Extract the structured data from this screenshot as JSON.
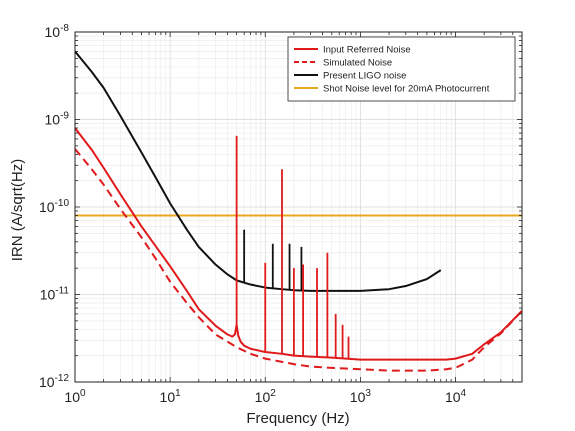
{
  "chart_data": {
    "type": "line",
    "title": "",
    "xlabel": "Frequency (Hz)",
    "ylabel": "IRN (A/sqrt(Hz)",
    "xscale": "log",
    "yscale": "log",
    "xlim": [
      1,
      50000
    ],
    "ylim": [
      1e-12,
      1e-08
    ],
    "grid": true,
    "legend_position": "top-right",
    "x_ticks": [
      {
        "value": 1,
        "base": "10",
        "exp": "0"
      },
      {
        "value": 10,
        "base": "10",
        "exp": "1"
      },
      {
        "value": 100,
        "base": "10",
        "exp": "2"
      },
      {
        "value": 1000,
        "base": "10",
        "exp": "3"
      },
      {
        "value": 10000,
        "base": "10",
        "exp": "4"
      }
    ],
    "y_ticks": [
      {
        "value": 1e-12,
        "base": "10",
        "exp": "-12"
      },
      {
        "value": 1e-11,
        "base": "10",
        "exp": "-11"
      },
      {
        "value": 1e-10,
        "base": "10",
        "exp": "-10"
      },
      {
        "value": 1e-09,
        "base": "10",
        "exp": "-9"
      },
      {
        "value": 1e-08,
        "base": "10",
        "exp": "-8"
      }
    ],
    "series": [
      {
        "name": "Input Referred Noise",
        "color": "#e0191b",
        "style": "solid",
        "x": [
          1,
          1.5,
          2,
          3,
          5,
          7,
          10,
          15,
          20,
          30,
          40,
          45,
          48,
          50,
          52,
          55,
          60,
          70,
          100,
          150,
          200,
          300,
          500,
          1000,
          2000,
          5000,
          8000,
          10000,
          15000,
          20000,
          30000,
          50000
        ],
        "y": [
          8e-10,
          4.5e-10,
          2.8e-10,
          1.4e-10,
          6e-11,
          3.6e-11,
          2.1e-11,
          1.1e-11,
          6.8e-12,
          4.4e-12,
          3.5e-12,
          3.3e-12,
          3.5e-12,
          4.5e-12,
          3.4e-12,
          2.9e-12,
          2.6e-12,
          2.4e-12,
          2.2e-12,
          2.1e-12,
          2e-12,
          1.95e-12,
          1.9e-12,
          1.8e-12,
          1.8e-12,
          1.8e-12,
          1.8e-12,
          1.85e-12,
          2.1e-12,
          2.7e-12,
          3.7e-12,
          6.5e-12
        ],
        "peaks": [
          {
            "x": 50,
            "y": 6.5e-10
          },
          {
            "x": 100,
            "y": 2.3e-11
          },
          {
            "x": 150,
            "y": 2.7e-10
          },
          {
            "x": 200,
            "y": 2e-11
          },
          {
            "x": 250,
            "y": 2.2e-11
          },
          {
            "x": 350,
            "y": 2e-11
          },
          {
            "x": 450,
            "y": 3e-11
          },
          {
            "x": 550,
            "y": 6e-12
          },
          {
            "x": 650,
            "y": 4.5e-12
          },
          {
            "x": 750,
            "y": 3.3e-12
          }
        ]
      },
      {
        "name": "Simulated Noise",
        "color": "#e0191b",
        "style": "dashed",
        "x": [
          1,
          1.5,
          2,
          3,
          5,
          7,
          10,
          15,
          20,
          30,
          50,
          70,
          100,
          150,
          200,
          300,
          500,
          1000,
          2000,
          5000,
          8000,
          10000,
          15000,
          20000,
          30000,
          50000
        ],
        "y": [
          4.6e-10,
          2.7e-10,
          1.8e-10,
          9.5e-11,
          4.5e-11,
          2.6e-11,
          1.4e-11,
          8e-12,
          5.5e-12,
          3.5e-12,
          2.5e-12,
          2.1e-12,
          1.85e-12,
          1.7e-12,
          1.6e-12,
          1.5e-12,
          1.45e-12,
          1.4e-12,
          1.35e-12,
          1.35e-12,
          1.4e-12,
          1.45e-12,
          1.8e-12,
          2.5e-12,
          3.6e-12,
          6.5e-12
        ]
      },
      {
        "name": "Present LIGO noise",
        "color": "#111111",
        "style": "solid",
        "x": [
          1,
          1.5,
          2,
          3,
          5,
          7,
          10,
          15,
          20,
          30,
          40,
          50,
          70,
          100,
          150,
          200,
          300,
          500,
          1000,
          2000,
          3000,
          5000,
          7000
        ],
        "y": [
          6e-09,
          3.5e-09,
          2.3e-09,
          1.1e-09,
          4.2e-10,
          2.2e-10,
          1.1e-10,
          5.5e-11,
          3.5e-11,
          2.2e-11,
          1.7e-11,
          1.45e-11,
          1.3e-11,
          1.2e-11,
          1.15e-11,
          1.12e-11,
          1.1e-11,
          1.1e-11,
          1.1e-11,
          1.15e-11,
          1.25e-11,
          1.5e-11,
          1.9e-11
        ],
        "peaks": [
          {
            "x": 60,
            "y": 5.5e-11
          },
          {
            "x": 120,
            "y": 3.8e-11
          },
          {
            "x": 180,
            "y": 3.8e-11
          },
          {
            "x": 240,
            "y": 3.5e-11
          }
        ]
      },
      {
        "name": "Shot Noise level for 20mA Photocurrent",
        "color": "#e8a81c",
        "style": "solid",
        "x": [
          1,
          50000
        ],
        "y": [
          8e-11,
          8e-11
        ]
      }
    ]
  }
}
